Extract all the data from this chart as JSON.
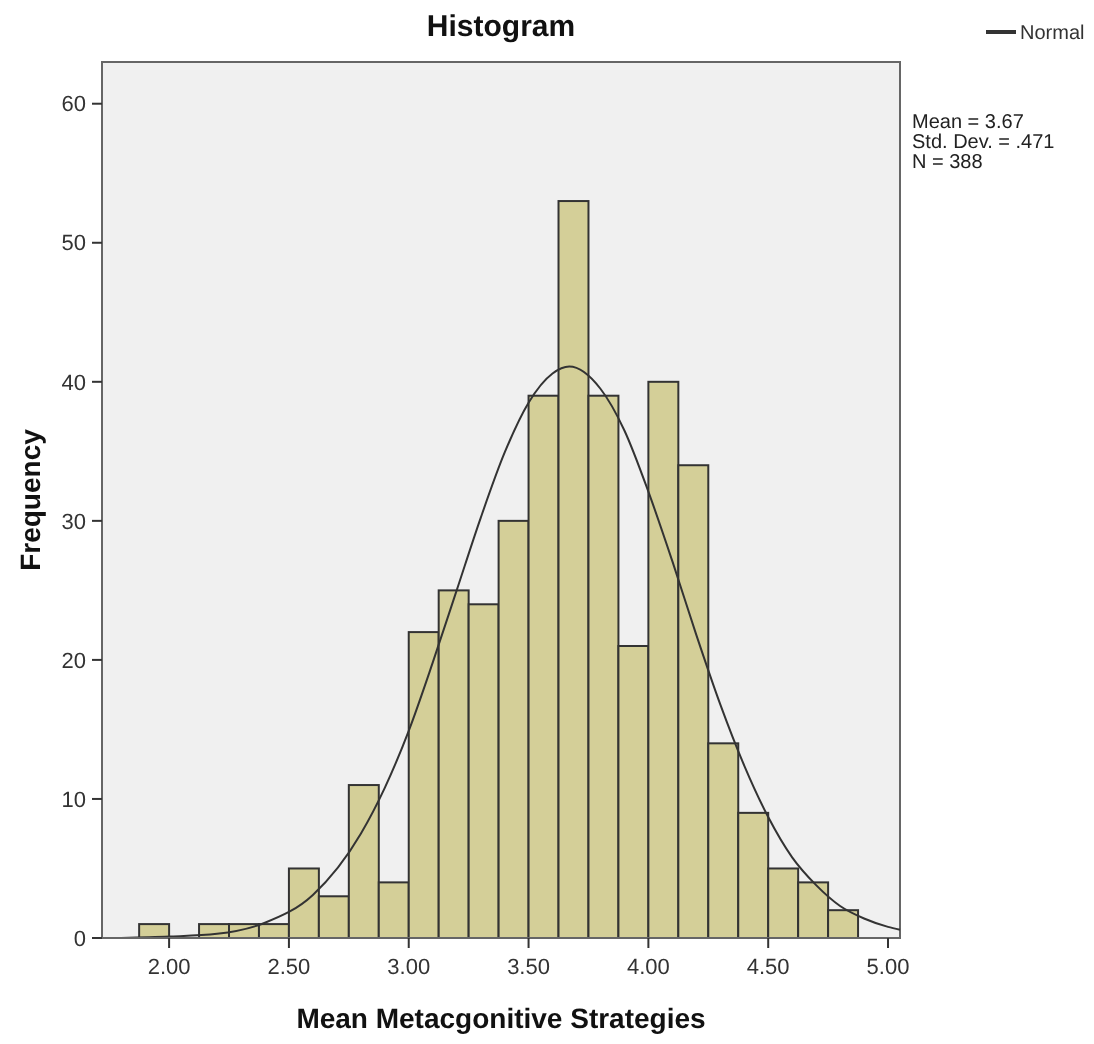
{
  "chart_data": {
    "type": "histogram",
    "title": "Histogram",
    "xlabel": "Mean Metacgonitive Strategies",
    "ylabel": "Frequency",
    "bins": [
      1.875,
      2.0,
      2.125,
      2.25,
      2.375,
      2.5,
      2.625,
      2.75,
      2.875,
      3.0,
      3.125,
      3.25,
      3.375,
      3.5,
      3.625,
      3.75,
      3.875,
      4.0,
      4.125,
      4.25,
      4.375,
      4.5,
      4.625,
      4.75,
      4.875
    ],
    "series": [
      {
        "color": "#d4cf98",
        "values": [
          1,
          0,
          1,
          1,
          1,
          5,
          3,
          11,
          4,
          22,
          25,
          24,
          30,
          39,
          53,
          39,
          21,
          40,
          34,
          14,
          9,
          5,
          4,
          2
        ]
      },
      {
        "type": "line",
        "name": "Normal",
        "color": "#333333",
        "x": [
          1.8,
          2.0,
          2.2,
          2.4,
          2.6,
          2.8,
          2.9,
          3.0,
          3.1,
          3.2,
          3.3,
          3.4,
          3.5,
          3.6,
          3.67,
          3.8,
          3.9,
          4.0,
          4.1,
          4.2,
          4.3,
          4.4,
          4.5,
          4.6,
          4.7,
          4.8,
          4.9,
          5.0,
          5.05
        ],
        "values": [
          0,
          0.1,
          0.3,
          1.1,
          3.1,
          7.5,
          10.8,
          14.9,
          19.8,
          25.0,
          30.2,
          34.9,
          38.5,
          40.6,
          41.1,
          39.5,
          36.5,
          32.1,
          27.1,
          21.8,
          16.8,
          12.4,
          8.7,
          5.8,
          3.8,
          2.3,
          1.4,
          0.8,
          0.6
        ]
      }
    ],
    "xlim": [
      1.72,
      5.05
    ],
    "ylim": [
      0,
      63
    ],
    "xticks": [
      {
        "value": 2,
        "label": "2.00"
      },
      {
        "value": 2.5,
        "label": "2.50"
      },
      {
        "value": 3,
        "label": "3.00"
      },
      {
        "value": 3.5,
        "label": "3.50"
      },
      {
        "value": 4,
        "label": "4.00"
      },
      {
        "value": 4.5,
        "label": "4.50"
      },
      {
        "value": 5,
        "label": "5.00"
      }
    ],
    "yticks": [
      0,
      10,
      20,
      30,
      40,
      50,
      60
    ],
    "legend": "top right",
    "annotations": [
      "Mean = 3.67",
      "Std. Dev. = .471",
      "N = 388"
    ]
  }
}
